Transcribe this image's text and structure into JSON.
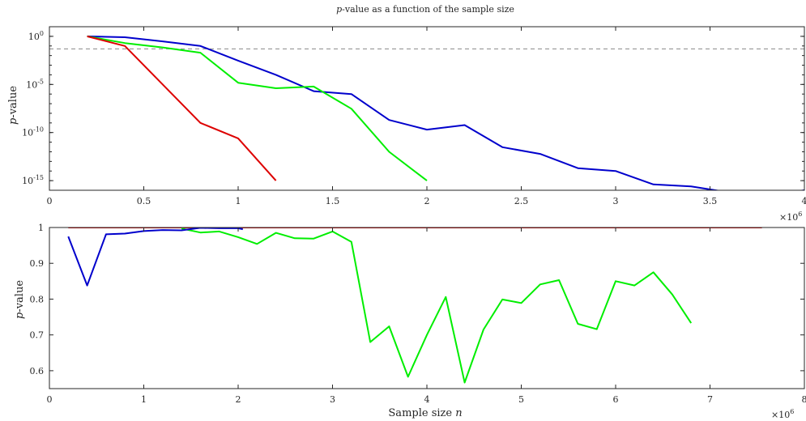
{
  "chart_data": [
    {
      "type": "line",
      "title": "p-value as a function of the sample size",
      "title_italic": "p",
      "title_rest": "-value as a function of the sample size",
      "xlabel": "",
      "ylabel": "p-value",
      "ylabel_italic": "p",
      "ylabel_rest": "-value",
      "yscale": "log",
      "xlim": [
        0,
        4000000
      ],
      "ylim": [
        1e-16,
        10
      ],
      "x_ticks": [
        0,
        500000,
        1000000,
        1500000,
        2000000,
        2500000,
        3000000,
        3500000,
        4000000
      ],
      "x_tick_labels": [
        "0",
        "0.5",
        "1",
        "1.5",
        "2",
        "2.5",
        "3",
        "3.5",
        "4"
      ],
      "x_exponent_label": "×10",
      "x_exponent_power": "6",
      "y_ticks": [
        1,
        1e-05,
        1e-10,
        1e-15
      ],
      "y_tick_labels": [
        {
          "base": "10",
          "exp": "0"
        },
        {
          "base": "10",
          "exp": "-5"
        },
        {
          "base": "10",
          "exp": "-10"
        },
        {
          "base": "10",
          "exp": "-15"
        }
      ],
      "reference_line": {
        "y": 0.05,
        "style": "dashed",
        "color": "#888888"
      },
      "series": [
        {
          "color": "#0000cc",
          "x": [
            200000,
            400000,
            600000,
            800000,
            1000000,
            1200000,
            1400000,
            1600000,
            1800000,
            2000000,
            2200000,
            2400000,
            2600000,
            2800000,
            3000000,
            3200000,
            3400000,
            3600000,
            3800000,
            4000000
          ],
          "y": [
            1,
            0.8,
            0.3,
            0.1,
            0.003,
            0.0001,
            2e-06,
            1e-06,
            2e-09,
            2e-10,
            6e-10,
            3e-12,
            6e-13,
            2e-14,
            1e-14,
            4e-16,
            2.5e-16,
            6e-17,
            3e-17,
            1e-16
          ]
        },
        {
          "color": "#00ee00",
          "x": [
            200000,
            400000,
            600000,
            800000,
            1000000,
            1200000,
            1400000,
            1600000,
            1800000,
            2000000
          ],
          "y": [
            1,
            0.2,
            0.07,
            0.02,
            1.5e-05,
            4e-06,
            6e-06,
            3e-08,
            1e-12,
            1e-15
          ]
        },
        {
          "color": "#dd0000",
          "x": [
            200000,
            400000,
            600000,
            800000,
            1000000,
            1200000
          ],
          "y": [
            1,
            0.1,
            1e-05,
            1e-09,
            2.5e-11,
            1e-15
          ]
        }
      ]
    },
    {
      "type": "line",
      "title": "",
      "xlabel": "Sample size n",
      "xlabel_plain": "Sample size ",
      "xlabel_italic": "n",
      "ylabel": "p-value",
      "ylabel_italic": "p",
      "ylabel_rest": "-value",
      "xlim": [
        0,
        8000000
      ],
      "ylim": [
        0.55,
        1.0
      ],
      "x_ticks": [
        0,
        1000000,
        2000000,
        3000000,
        4000000,
        5000000,
        6000000,
        7000000,
        8000000
      ],
      "x_tick_labels": [
        "0",
        "1",
        "2",
        "3",
        "4",
        "5",
        "6",
        "7",
        "8"
      ],
      "x_exponent_label": "×10",
      "x_exponent_power": "6",
      "y_ticks": [
        0.6,
        0.7,
        0.8,
        0.9,
        1.0
      ],
      "y_tick_labels": [
        "0.6",
        "0.7",
        "0.8",
        "0.9",
        "1"
      ],
      "series": [
        {
          "color": "#dd0000",
          "x": [
            200000,
            7550000
          ],
          "y": [
            1.0,
            1.0
          ]
        },
        {
          "color": "#00ee00",
          "x": [
            1400000,
            1600000,
            1800000,
            2000000,
            2200000,
            2400000,
            2600000,
            2800000,
            3000000,
            3200000,
            3400000,
            3600000,
            3800000,
            4000000,
            4200000,
            4400000,
            4600000,
            4800000,
            5000000,
            5200000,
            5400000,
            5600000,
            5800000,
            6000000,
            6200000,
            6400000,
            6600000,
            6800000
          ],
          "y": [
            0.997,
            0.986,
            0.989,
            0.973,
            0.954,
            0.985,
            0.97,
            0.969,
            0.989,
            0.96,
            0.68,
            0.724,
            0.583,
            0.7,
            0.806,
            0.567,
            0.715,
            0.799,
            0.789,
            0.841,
            0.853,
            0.731,
            0.716,
            0.85,
            0.838,
            0.875,
            0.813,
            0.733
          ]
        },
        {
          "color": "#0000cc",
          "x": [
            200000,
            400000,
            600000,
            800000,
            1000000,
            1200000,
            1400000,
            1600000,
            1800000,
            2000000,
            2050000
          ],
          "y": [
            0.975,
            0.838,
            0.981,
            0.983,
            0.99,
            0.993,
            0.992,
            0.999,
            0.998,
            0.998,
            0.995
          ]
        }
      ]
    }
  ]
}
